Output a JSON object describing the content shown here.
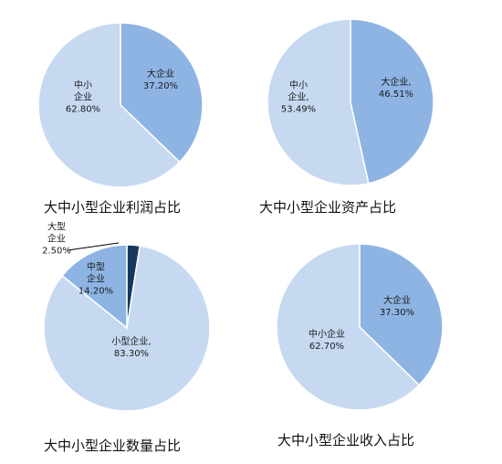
{
  "chart_data": [
    {
      "type": "pie",
      "title": "大中小型企业利润占比",
      "slices": [
        {
          "lines": [
            "大企业",
            "37.20%"
          ],
          "value": 37.2,
          "color": "#8eb4e3"
        },
        {
          "lines": [
            "中小",
            "企业",
            "62.80%"
          ],
          "value": 62.8,
          "color": "#c6d9f1"
        }
      ]
    },
    {
      "type": "pie",
      "title": "大中小型企业资产占比",
      "slices": [
        {
          "lines": [
            "大企业,",
            "46.51%"
          ],
          "value": 46.51,
          "color": "#8eb4e3"
        },
        {
          "lines": [
            "中小",
            "企业,",
            "53.49%"
          ],
          "value": 53.49,
          "color": "#c6d9f1"
        }
      ]
    },
    {
      "type": "pie",
      "title": "大中小型企业数量占比",
      "slices": [
        {
          "lines": [
            "大型",
            "企业",
            "2.50%"
          ],
          "value": 2.5,
          "color": "#17375e"
        },
        {
          "lines": [
            "小型企业,",
            "83.30%"
          ],
          "value": 83.3,
          "color": "#c6d9f1"
        },
        {
          "lines": [
            "中型",
            "企业",
            "14.20%"
          ],
          "value": 14.2,
          "color": "#8eb4e3"
        }
      ]
    },
    {
      "type": "pie",
      "title": "大中小型企业收入占比",
      "slices": [
        {
          "lines": [
            "大企业",
            "37.30%"
          ],
          "value": 37.3,
          "color": "#8eb4e3"
        },
        {
          "lines": [
            "中小企业",
            "62.70%"
          ],
          "value": 62.7,
          "color": "#c6d9f1"
        }
      ]
    }
  ]
}
